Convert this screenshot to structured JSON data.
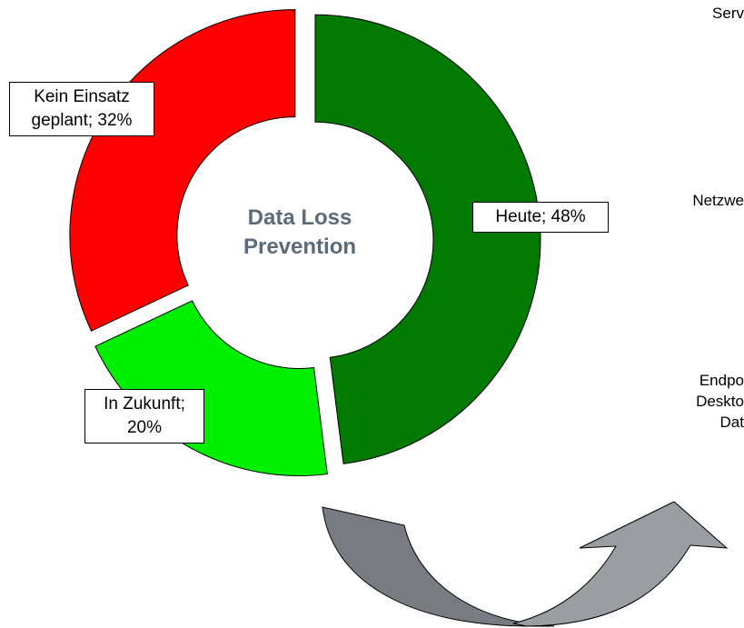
{
  "chart_data": {
    "type": "donut",
    "title": "Data Loss Prevention",
    "values": [
      48,
      20,
      32
    ],
    "value_labels": [
      "Heute; 48%",
      "In Zukunft; 20%",
      "Kein Einsatz geplant; 32%"
    ],
    "colors": [
      "#007a00",
      "#00ee00",
      "#ff0000"
    ],
    "annotations": [
      "Serv",
      "Netzwe",
      "Endpo",
      "Deskto",
      "Dat"
    ]
  }
}
